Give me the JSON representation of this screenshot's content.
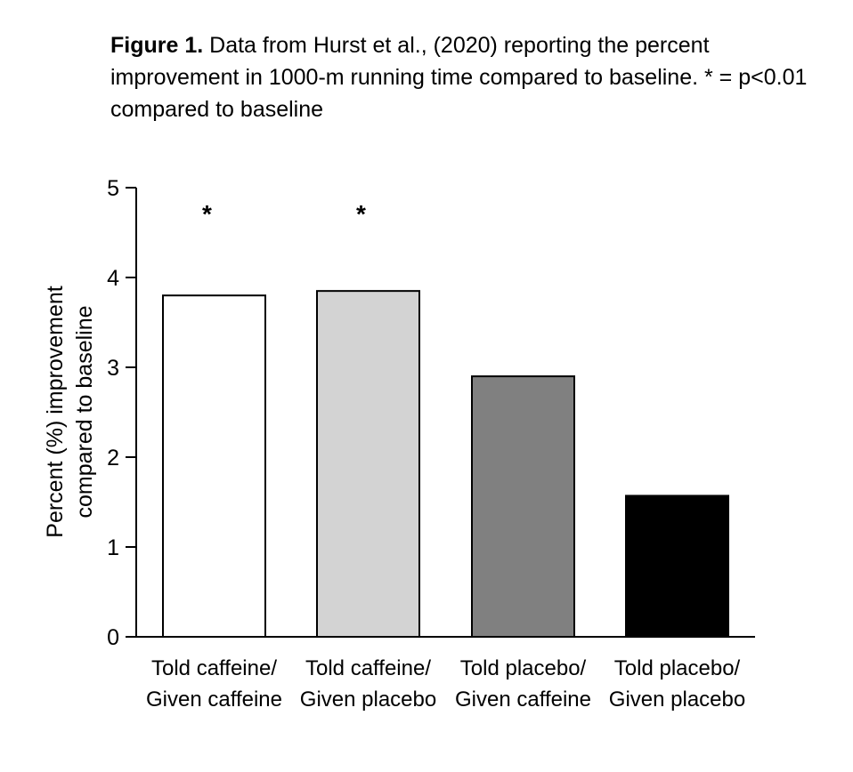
{
  "caption": {
    "label": "Figure 1.",
    "text": " Data from Hurst et al., (2020) reporting the percent improvement in 1000-m running time compared to baseline. * = p<0.01 compared to baseline"
  },
  "chart_data": {
    "type": "bar",
    "title": "",
    "xlabel": "",
    "ylabel": [
      "Percent (%) improvement",
      "compared to baseline"
    ],
    "ylim": [
      0,
      5
    ],
    "yticks": [
      0,
      1,
      2,
      3,
      4,
      5
    ],
    "categories": [
      [
        "Told caffeine/",
        "Given caffeine"
      ],
      [
        "Told caffeine/",
        "Given placebo"
      ],
      [
        "Told placebo/",
        "Given caffeine"
      ],
      [
        "Told placebo/",
        "Given placebo"
      ]
    ],
    "values": [
      3.8,
      3.85,
      2.9,
      1.57
    ],
    "colors": [
      "#ffffff",
      "#d3d3d3",
      "#808080",
      "#000000"
    ],
    "annotations": [
      "*",
      "*",
      "",
      ""
    ],
    "grid": false,
    "legend": "none"
  }
}
